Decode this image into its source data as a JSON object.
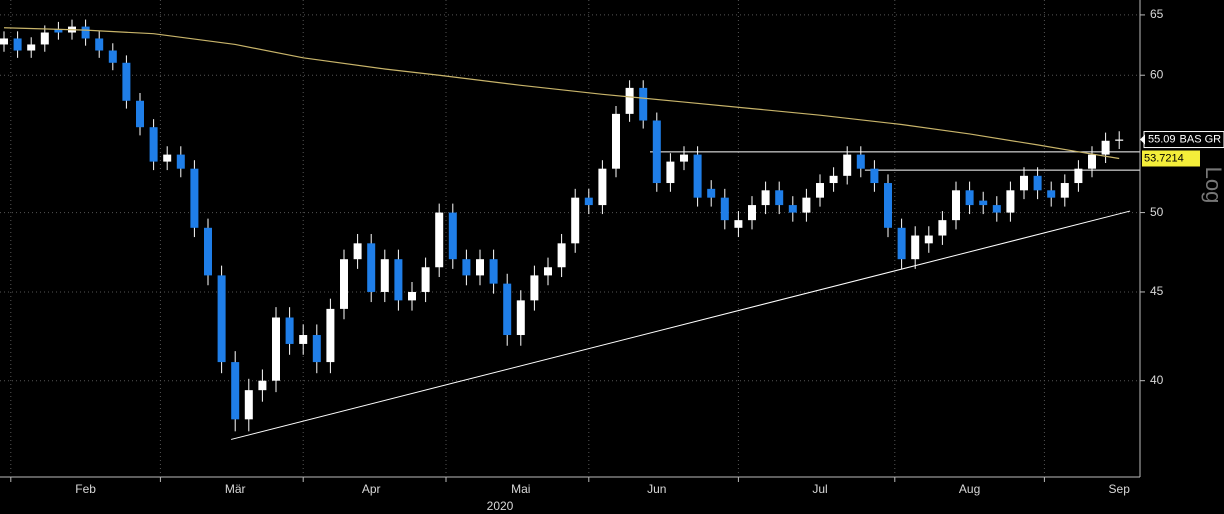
{
  "chart_data": {
    "type": "candlestick",
    "log_scale": true,
    "grid": true,
    "scale_label": "Log",
    "x_sublabel": "2020",
    "categories": [
      null,
      null,
      null,
      null,
      null,
      null,
      "Feb",
      null,
      null,
      null,
      null,
      null,
      null,
      null,
      null,
      null,
      null,
      "Mär",
      null,
      null,
      null,
      null,
      null,
      null,
      null,
      null,
      null,
      "Apr",
      null,
      null,
      null,
      null,
      null,
      null,
      null,
      null,
      null,
      null,
      "Mai",
      null,
      null,
      null,
      null,
      null,
      null,
      null,
      null,
      null,
      "Jun",
      null,
      null,
      null,
      null,
      null,
      null,
      null,
      null,
      null,
      null,
      null,
      "Jul",
      null,
      null,
      null,
      null,
      null,
      null,
      null,
      null,
      null,
      null,
      "Aug",
      null,
      null,
      null,
      null,
      null,
      null,
      null,
      null,
      null,
      null,
      "Sep"
    ],
    "series": [
      {
        "name": "BAS GR",
        "up_color": "#ffffff",
        "down_color": "#1f7ee8",
        "open": [
          62.5,
          63,
          62,
          62.5,
          63.8,
          63.5,
          64,
          63,
          62,
          61,
          58,
          56,
          53.5,
          54,
          53,
          49,
          46,
          41,
          38,
          39.5,
          40,
          43.5,
          42,
          42.5,
          41,
          44,
          47,
          48,
          45,
          47,
          44.5,
          45,
          46.5,
          50,
          47,
          46,
          47,
          45.5,
          42.5,
          44.5,
          46,
          46.5,
          48,
          51,
          50.5,
          53,
          57,
          59,
          56.5,
          52,
          53.5,
          54,
          51.6,
          51,
          49,
          49.5,
          50.5,
          51.5,
          50.5,
          50,
          51,
          52,
          52.5,
          54,
          53,
          52,
          49,
          47,
          48,
          48.5,
          49.5,
          51.5,
          50.8,
          50.5,
          50,
          51.5,
          52.5,
          51.5,
          51,
          52,
          53,
          54,
          55
        ],
        "high": [
          63.6,
          63.6,
          63.1,
          64.1,
          64.4,
          64.6,
          64.6,
          63.6,
          62.6,
          61.6,
          58.6,
          56.6,
          54.6,
          54.6,
          53.6,
          49.6,
          46.6,
          41.6,
          40.1,
          40.6,
          44.1,
          44.1,
          43.1,
          43.1,
          44.6,
          47.6,
          48.6,
          48.6,
          47.6,
          47.6,
          45.6,
          47.1,
          50.6,
          50.6,
          47.6,
          47.6,
          47.6,
          46.1,
          45.1,
          46.6,
          47.1,
          48.6,
          51.6,
          51.6,
          53.6,
          57.6,
          59.6,
          59.6,
          57.1,
          54.1,
          54.6,
          54.6,
          52.2,
          51.6,
          50.1,
          51.1,
          52.1,
          52.1,
          51.1,
          51.6,
          52.6,
          53.1,
          54.6,
          54.6,
          53.6,
          52.6,
          49.6,
          49.1,
          49.1,
          50.1,
          52.1,
          52.1,
          51.4,
          51.1,
          52.1,
          53.1,
          53.1,
          52.1,
          52.6,
          53.6,
          54.6,
          55.6,
          55.7
        ],
        "low": [
          61.9,
          61.4,
          61.4,
          61.9,
          62.9,
          62.9,
          62.4,
          61.4,
          60.4,
          57.4,
          55.4,
          52.9,
          52.9,
          52.4,
          48.4,
          45.4,
          40.4,
          37.4,
          37.4,
          38.9,
          39.4,
          41.4,
          41.4,
          40.4,
          40.4,
          43.4,
          46.4,
          44.4,
          44.4,
          43.9,
          43.9,
          44.4,
          45.9,
          46.4,
          45.4,
          45.4,
          44.9,
          41.9,
          41.9,
          43.9,
          45.4,
          45.9,
          47.4,
          49.9,
          49.9,
          52.4,
          56.4,
          55.9,
          51.4,
          51.4,
          52.9,
          50.4,
          50.4,
          48.9,
          48.4,
          48.9,
          49.9,
          49.9,
          49.4,
          49.4,
          50.4,
          51.4,
          51.9,
          52.4,
          51.4,
          48.4,
          46.4,
          46.4,
          47.4,
          47.9,
          48.9,
          49.9,
          49.9,
          49.4,
          49.4,
          50.9,
          50.9,
          50.4,
          50.4,
          51.4,
          52.4,
          53.4,
          54.4
        ],
        "close": [
          63,
          62,
          62.5,
          63.5,
          63.5,
          64,
          63,
          62,
          61,
          58,
          56,
          53.5,
          54,
          53,
          49,
          46,
          41,
          38,
          39.5,
          40,
          43.5,
          42,
          42.5,
          41,
          44,
          47,
          48,
          45,
          47,
          44.5,
          45,
          46.5,
          50,
          47,
          46,
          47,
          45.5,
          42.5,
          44.5,
          46,
          46.5,
          48,
          51,
          50.5,
          53,
          57,
          59,
          56.5,
          52,
          53.5,
          54,
          51,
          51,
          49.5,
          49.5,
          50.5,
          51.5,
          50.5,
          50,
          51,
          52,
          52.5,
          54,
          53,
          52,
          49,
          47,
          48.5,
          48.5,
          49.5,
          51.5,
          50.5,
          50.5,
          50,
          51.5,
          52.5,
          51.5,
          51,
          52,
          53,
          54,
          55,
          55.09
        ]
      },
      {
        "type": "line",
        "color": "#c8b46a",
        "label_color": "#f4ee3a",
        "x": [
          0,
          6,
          11,
          17,
          22,
          28,
          32,
          38,
          44,
          50,
          55,
          60,
          66,
          71,
          76,
          79,
          82
        ],
        "values": [
          63.9,
          63.7,
          63.4,
          62.5,
          61.4,
          60.5,
          60,
          59.2,
          58.5,
          57.9,
          57.4,
          56.9,
          56.2,
          55.5,
          54.7,
          54.2,
          53.7214
        ]
      }
    ],
    "lines": [
      {
        "color": "#ffffff",
        "x": [
          47.5,
          83.5
        ],
        "values": [
          54.2,
          54.2
        ]
      },
      {
        "color": "#ffffff",
        "x": [
          63.3,
          83.5
        ],
        "values": [
          52.9,
          52.9
        ]
      },
      {
        "color": "#ffffff",
        "x": [
          16.7,
          82.8
        ],
        "values": [
          37,
          50.1
        ]
      }
    ],
    "ylim": [
      35.2,
      66.3
    ],
    "yticks": [
      40,
      45,
      50,
      60,
      65
    ]
  }
}
